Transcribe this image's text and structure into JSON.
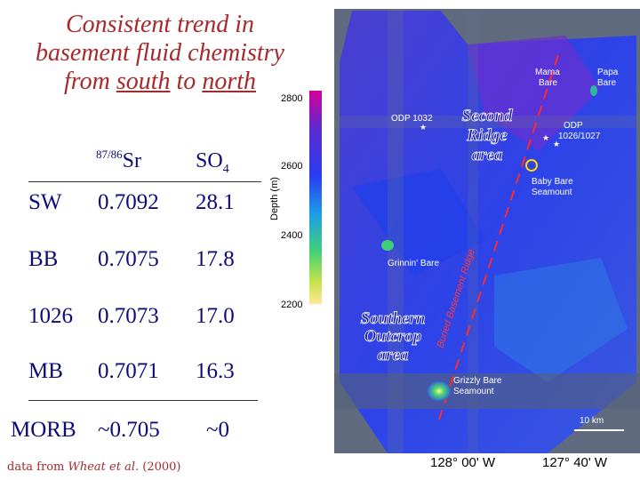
{
  "title": {
    "line1": "Consistent trend in",
    "line2": "basement fluid chemistry",
    "line3_pre": "from ",
    "line3_south": "south",
    "line3_mid": " to ",
    "line3_north": "north"
  },
  "table": {
    "col_sr_sup": "87/86",
    "col_sr": "Sr",
    "col_so": "SO",
    "col_so_sub": "4",
    "rows": [
      {
        "site": "SW",
        "sr": "0.7092",
        "so4": "28.1"
      },
      {
        "site": "BB",
        "sr": "0.7075",
        "so4": "17.8"
      },
      {
        "site": "1026",
        "sr": "0.7073",
        "so4": "17.0"
      },
      {
        "site": "MB",
        "sr": "0.7071",
        "so4": "16.3"
      }
    ],
    "morb": {
      "site": "MORB",
      "sr": "~0.705",
      "so4": "~0"
    }
  },
  "credit": {
    "pre": "data from ",
    "authors": "Wheat et al.",
    "year": " (2000)"
  },
  "map": {
    "colorbar_title": "Depth (m)",
    "colorbar_ticks": [
      "2800",
      "2600",
      "2400",
      "2200"
    ],
    "labels": {
      "mama_bare_1": "Mama",
      "mama_bare_2": "Bare",
      "papa_bare_1": "Papa",
      "papa_bare_2": "Bare",
      "odp1032": "ODP 1032",
      "odp1026_1": "ODP",
      "odp1026_2": "1026/1027",
      "baby_bare_1": "Baby Bare",
      "baby_bare_2": "Seamount",
      "grinnin_bare": "Grinnin' Bare",
      "buried_ridge": "Buried Basement Ridge",
      "grizzly_1": "Grizzly Bare",
      "grizzly_2": "Seamount",
      "scale": "10 km"
    },
    "second_ridge": [
      "Second",
      "Ridge",
      "area"
    ],
    "southern_outcrop": [
      "Southern",
      "Outcrop",
      "area"
    ],
    "lon_left": "128° 00' W",
    "lon_right": "127° 40' W"
  },
  "colors": {
    "title": "#a8292c",
    "table": "#0e0b78"
  }
}
